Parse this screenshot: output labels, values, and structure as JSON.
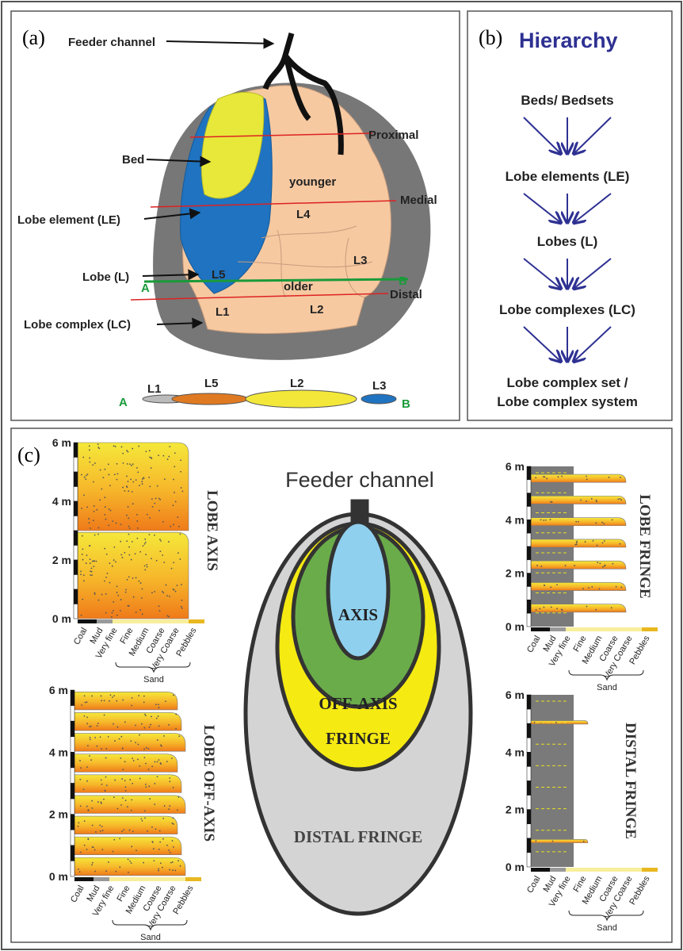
{
  "panel_a": {
    "label": "(a)",
    "feeder_channel": "Feeder channel",
    "bed": "Bed",
    "lobe_element": "Lobe element (LE)",
    "lobe": "Lobe (L)",
    "lobe_complex": "Lobe complex (LC)",
    "proximal": "Proximal",
    "medial": "Medial",
    "distal": "Distal",
    "younger": "younger",
    "older": "older",
    "lobes_plan": [
      "L1",
      "L2",
      "L3",
      "L4",
      "L5"
    ],
    "section_a": "A",
    "section_b": "B",
    "cross_section": [
      "L1",
      "L5",
      "L2",
      "L3"
    ]
  },
  "panel_b": {
    "label": "(b)",
    "title": "Hierarchy",
    "levels": [
      "Beds/ Bedsets",
      "Lobe elements (LE)",
      "Lobes (L)",
      "Lobe complexes (LC)"
    ],
    "final_level": [
      "Lobe complex set /",
      "Lobe complex system"
    ]
  },
  "panel_c": {
    "label": "(c)",
    "feeder_channel": "Feeder channel",
    "zones": [
      "AXIS",
      "OFF-AXIS",
      "FRINGE",
      "DISTAL FRINGE"
    ],
    "logs": [
      {
        "title": "LOBE AXIS"
      },
      {
        "title": "LOBE OFF-AXIS"
      },
      {
        "title": "LOBE FRINGE"
      },
      {
        "title": "DISTAL FRINGE"
      }
    ],
    "depth_labels": [
      "6 m",
      "4 m",
      "2 m",
      "0 m"
    ],
    "grain_sizes": [
      "Coal",
      "Mud",
      "Very fine",
      "Fine",
      "Medium",
      "Coarse",
      "Very Coarse",
      "Pebbles"
    ],
    "sand": "Sand"
  }
}
